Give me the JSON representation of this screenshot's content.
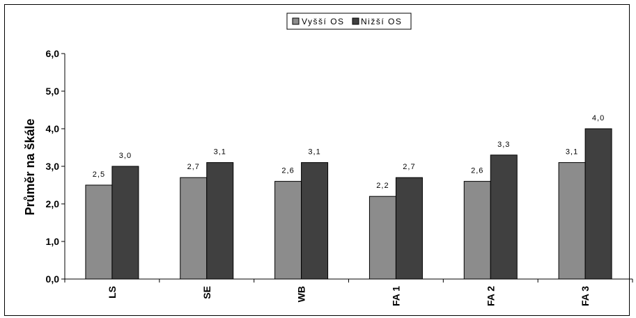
{
  "chart_data": {
    "type": "bar",
    "categories": [
      "LS",
      "SE",
      "WB",
      "FA 1",
      "FA 2",
      "FA 3"
    ],
    "series": [
      {
        "name": "Vyšší OS",
        "color": "#8c8c8c",
        "values": [
          2.5,
          2.7,
          2.6,
          2.2,
          2.6,
          3.1
        ],
        "labels": [
          "2,5",
          "2,7",
          "2,6",
          "2,2",
          "2,6",
          "3,1"
        ]
      },
      {
        "name": "Nižší OS",
        "color": "#404040",
        "values": [
          3.0,
          3.1,
          3.1,
          2.7,
          3.3,
          4.0
        ],
        "labels": [
          "3,0",
          "3,1",
          "3,1",
          "2,7",
          "3,3",
          "4,0"
        ]
      }
    ],
    "ylabel": "Průměr na škále",
    "xlabel": "",
    "ylim": [
      0,
      6
    ],
    "yticks": [
      0,
      1,
      2,
      3,
      4,
      5,
      6
    ],
    "ytick_labels": [
      "0,0",
      "1,0",
      "2,0",
      "3,0",
      "4,0",
      "5,0",
      "6,0"
    ],
    "grid": false,
    "legend_position": "top-center"
  }
}
